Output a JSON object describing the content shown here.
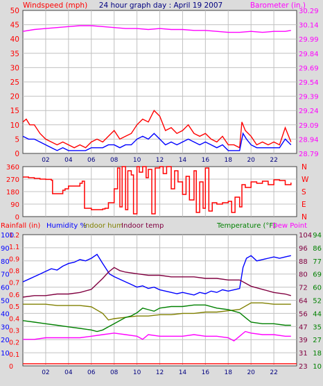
{
  "colors": {
    "background": "#dcdcdc",
    "plot_bg": "#ffffff",
    "windspeed": "#ff0000",
    "gust": "#ff0000",
    "average_wind": "#0000ff",
    "barometer": "#ff00ff",
    "direction": "#ff0000",
    "rainfall": "#ff0000",
    "humidity": "#0000ff",
    "indoor_humidity": "#808000",
    "indoor_temp": "#800040",
    "temperature": "#008000",
    "dew_point": "#ff00ff",
    "grid": "#c0c0c0",
    "tick_text": "#000080"
  },
  "chart_data": [
    {
      "type": "line",
      "title": "24 hour graph day : April 19 2007",
      "ylabel_left": "Windspeed (mph)",
      "ylabel_right": "Barometer (in.)",
      "x_ticks": [
        "02",
        "04",
        "06",
        "08",
        "10",
        "12",
        "14",
        "16",
        "18",
        "20",
        "22"
      ],
      "xlim": [
        0,
        24
      ],
      "ylim_left": [
        0,
        50
      ],
      "yticks_left": [
        "0",
        "5",
        "10",
        "15",
        "20",
        "25",
        "30",
        "35",
        "40",
        "45",
        "50"
      ],
      "ylim_right": [
        28.79,
        30.29
      ],
      "yticks_right": [
        "28.79",
        "28.94",
        "29.09",
        "29.24",
        "29.39",
        "29.54",
        "29.69",
        "29.84",
        "29.99",
        "30.14",
        "30.29"
      ],
      "grid": true,
      "series": [
        {
          "axis": "left",
          "x": [
            0,
            0.3,
            0.6,
            1,
            1.5,
            2,
            2.5,
            3,
            3.5,
            4,
            4.5,
            5,
            5.5,
            6,
            6.5,
            7,
            7.5,
            8,
            8.5,
            9,
            9.5,
            10,
            10.5,
            11,
            11.5,
            12,
            12.5,
            13,
            13.5,
            14,
            14.5,
            15,
            15.5,
            16,
            16.5,
            17,
            17.5,
            18,
            18.5,
            19,
            19.2,
            19.5,
            20,
            20.5,
            21,
            21.5,
            22,
            22.5,
            23,
            23.5
          ],
          "values": [
            11,
            12,
            10,
            10,
            7,
            5,
            4,
            3,
            4,
            3,
            2,
            3,
            2,
            4,
            5,
            4,
            6,
            8,
            5,
            6,
            7,
            10,
            12,
            11,
            15,
            13,
            8,
            9,
            7,
            8,
            10,
            7,
            6,
            7,
            5,
            4,
            6,
            3,
            3,
            2,
            11,
            8,
            6,
            3,
            4,
            3,
            4,
            3,
            9,
            4
          ]
        },
        {
          "axis": "left",
          "x": [
            0,
            0.5,
            1,
            1.5,
            2,
            2.5,
            3,
            3.5,
            4,
            4.5,
            5,
            5.5,
            6,
            6.5,
            7,
            7.5,
            8,
            8.5,
            9,
            9.5,
            10,
            10.5,
            11,
            11.5,
            12,
            12.5,
            13,
            13.5,
            14,
            14.5,
            15,
            15.5,
            16,
            16.5,
            17,
            17.5,
            18,
            18.5,
            19,
            19.3,
            19.6,
            20,
            20.5,
            21,
            21.5,
            22,
            22.5,
            23,
            23.5
          ],
          "values": [
            6,
            5,
            5,
            4,
            3,
            2,
            1,
            2,
            1,
            1,
            1,
            1,
            2,
            2,
            2,
            3,
            3,
            2,
            3,
            3,
            5,
            6,
            5,
            7,
            5,
            3,
            4,
            3,
            4,
            5,
            4,
            3,
            4,
            3,
            2,
            3,
            1,
            1,
            1,
            7,
            5,
            3,
            2,
            2,
            2,
            2,
            2,
            5,
            3
          ]
        },
        {
          "axis": "right",
          "x": [
            0,
            1,
            2,
            3,
            4,
            5,
            6,
            7,
            8,
            9,
            10,
            11,
            12,
            13,
            14,
            15,
            16,
            17,
            18,
            19,
            20,
            21,
            22,
            23,
            23.5
          ],
          "values": [
            30.07,
            30.09,
            30.1,
            30.11,
            30.12,
            30.13,
            30.13,
            30.12,
            30.11,
            30.1,
            30.1,
            30.09,
            30.1,
            30.09,
            30.09,
            30.08,
            30.08,
            30.07,
            30.06,
            30.06,
            30.07,
            30.06,
            30.07,
            30.07,
            30.08
          ]
        }
      ]
    },
    {
      "type": "line",
      "ylim": [
        0,
        360
      ],
      "yticks": [
        "0",
        "90",
        "180",
        "270",
        "360"
      ],
      "compass_labels": [
        "N",
        "W",
        "S",
        "E",
        "N"
      ],
      "series": [
        {
          "name": "Wind direction",
          "x": [
            0,
            0.5,
            1,
            1.5,
            2,
            2.5,
            2.6,
            3.5,
            3.7,
            4,
            5,
            5.2,
            5.4,
            6,
            7,
            7.2,
            7.5,
            8,
            8.3,
            8.5,
            8.7,
            9,
            9.2,
            9.5,
            9.7,
            10,
            10.2,
            10.5,
            10.8,
            11,
            11.3,
            11.6,
            12,
            12.3,
            12.6,
            13,
            13.3,
            13.6,
            14,
            14.3,
            14.6,
            15,
            15.2,
            15.5,
            15.8,
            16,
            16.3,
            16.6,
            17,
            17.5,
            18,
            18.3,
            18.6,
            19,
            19.2,
            19.5,
            20,
            20.5,
            21,
            21.5,
            22,
            22.5,
            23,
            23.5
          ],
          "values": [
            285,
            280,
            275,
            270,
            268,
            262,
            165,
            190,
            200,
            220,
            240,
            255,
            60,
            50,
            55,
            60,
            100,
            200,
            350,
            70,
            360,
            50,
            330,
            300,
            20,
            360,
            320,
            360,
            280,
            340,
            20,
            350,
            360,
            310,
            360,
            200,
            330,
            250,
            160,
            290,
            120,
            330,
            30,
            250,
            60,
            350,
            40,
            100,
            90,
            100,
            110,
            30,
            140,
            70,
            230,
            210,
            250,
            240,
            255,
            230,
            265,
            260,
            230,
            245
          ]
        }
      ]
    },
    {
      "type": "line",
      "legend": [
        "Rainfall (in)",
        "Humidity %",
        "Indoor hum",
        "Indoor temp",
        "Temperature (°F)",
        "Dew Point"
      ],
      "x_ticks": [
        "02",
        "04",
        "06",
        "08",
        "10",
        "12",
        "14",
        "16",
        "18",
        "20",
        "22"
      ],
      "xlim": [
        0,
        24
      ],
      "rain_ticks": [
        "0",
        "0.1",
        "0.2",
        "0.3",
        "0.4",
        "0.5",
        "0.6",
        "0.7",
        "0.8",
        "0.9",
        "1.1",
        "1.2"
      ],
      "humidity_ticks": [
        "10",
        "20",
        "30",
        "40",
        "50",
        "60",
        "70",
        "80",
        "90",
        "100"
      ],
      "humidity_ylim": [
        10,
        100
      ],
      "temp_ticks_a": [
        "23",
        "31",
        "39",
        "47",
        "56",
        "64",
        "72",
        "80",
        "88",
        "96",
        "104"
      ],
      "temp_ticks_b": [
        "10",
        "18",
        "27",
        "35",
        "44",
        "52",
        "60",
        "69",
        "77",
        "86",
        "94"
      ],
      "temp_ylim": [
        10,
        94
      ],
      "series": [
        {
          "name": "Rainfall (in)",
          "axis": "rain",
          "x": [
            0,
            24
          ],
          "values": [
            0,
            0
          ]
        },
        {
          "name": "Humidity %",
          "axis": "humidity",
          "x": [
            0,
            0.5,
            1,
            1.5,
            2,
            2.5,
            3,
            3.5,
            4,
            4.5,
            5,
            5.5,
            6,
            6.5,
            7,
            7.3,
            7.6,
            8,
            8.5,
            9,
            9.5,
            10,
            10.5,
            11,
            11.5,
            12,
            12.5,
            13,
            13.5,
            14,
            14.5,
            15,
            15.5,
            16,
            16.5,
            17,
            17.5,
            18,
            18.5,
            19,
            19.3,
            19.6,
            20,
            20.5,
            21,
            21.5,
            22,
            22.5,
            23,
            23.5
          ],
          "values": [
            64,
            66,
            68,
            70,
            72,
            74,
            73,
            76,
            78,
            79,
            81,
            80,
            82,
            85,
            78,
            74,
            70,
            68,
            66,
            64,
            62,
            60,
            61,
            59,
            60,
            58,
            57,
            56,
            55,
            56,
            55,
            54,
            56,
            55,
            57,
            56,
            58,
            57,
            58,
            59,
            75,
            82,
            84,
            80,
            81,
            82,
            83,
            82,
            83,
            84
          ]
        },
        {
          "name": "Indoor hum",
          "axis": "humidity",
          "x": [
            0,
            1,
            2,
            3,
            4,
            5,
            6,
            7,
            7.5,
            8,
            9,
            10,
            11,
            12,
            13,
            14,
            15,
            16,
            17,
            18,
            19,
            20,
            21,
            22,
            23,
            23.5
          ],
          "values": [
            47,
            47,
            47,
            46,
            46,
            46,
            45,
            40,
            35,
            36,
            37,
            38,
            38,
            39,
            39,
            40,
            40,
            41,
            41,
            42,
            43,
            48,
            48,
            47,
            47,
            47
          ]
        },
        {
          "name": "Indoor temp",
          "axis": "temp",
          "x": [
            0,
            1,
            2,
            3,
            4,
            5,
            6,
            7,
            7.5,
            8,
            8.5,
            9,
            10,
            11,
            12,
            13,
            14,
            15,
            16,
            17,
            18,
            19,
            20,
            21,
            22,
            23,
            23.5
          ],
          "values": [
            54,
            55,
            55,
            56,
            56,
            57,
            59,
            66,
            70,
            73,
            71,
            70,
            69,
            68,
            68,
            67,
            67,
            67,
            66,
            66,
            65,
            65,
            61,
            59,
            57,
            56,
            55
          ]
        },
        {
          "name": "Temperature (°F)",
          "axis": "temp",
          "x": [
            0,
            1,
            2,
            3,
            4,
            5,
            6,
            6.5,
            7,
            7.5,
            8,
            8.5,
            9,
            9.5,
            10,
            10.5,
            11,
            11.5,
            12,
            13,
            14,
            15,
            16,
            17,
            18,
            19,
            19.5,
            20,
            21,
            22,
            23,
            23.5
          ],
          "values": [
            39,
            38,
            37,
            36,
            35,
            34,
            33,
            32,
            33,
            35,
            37,
            39,
            41,
            42,
            44,
            47,
            46,
            45,
            47,
            48,
            48,
            49,
            49,
            47,
            46,
            44,
            41,
            38,
            37,
            37,
            36,
            36
          ]
        },
        {
          "name": "Dew Point",
          "axis": "temp",
          "x": [
            0,
            1,
            2,
            3,
            4,
            5,
            6,
            7,
            8,
            9,
            10,
            10.5,
            11,
            12,
            13,
            14,
            15,
            16,
            17,
            18,
            18.5,
            19,
            19.5,
            20,
            21,
            22,
            23,
            23.5
          ],
          "values": [
            27,
            27,
            28,
            28,
            28,
            28,
            29,
            30,
            31,
            30,
            29,
            27,
            30,
            29,
            29,
            29,
            30,
            29,
            29,
            28,
            26,
            29,
            32,
            31,
            30,
            30,
            29,
            29
          ]
        }
      ]
    }
  ]
}
